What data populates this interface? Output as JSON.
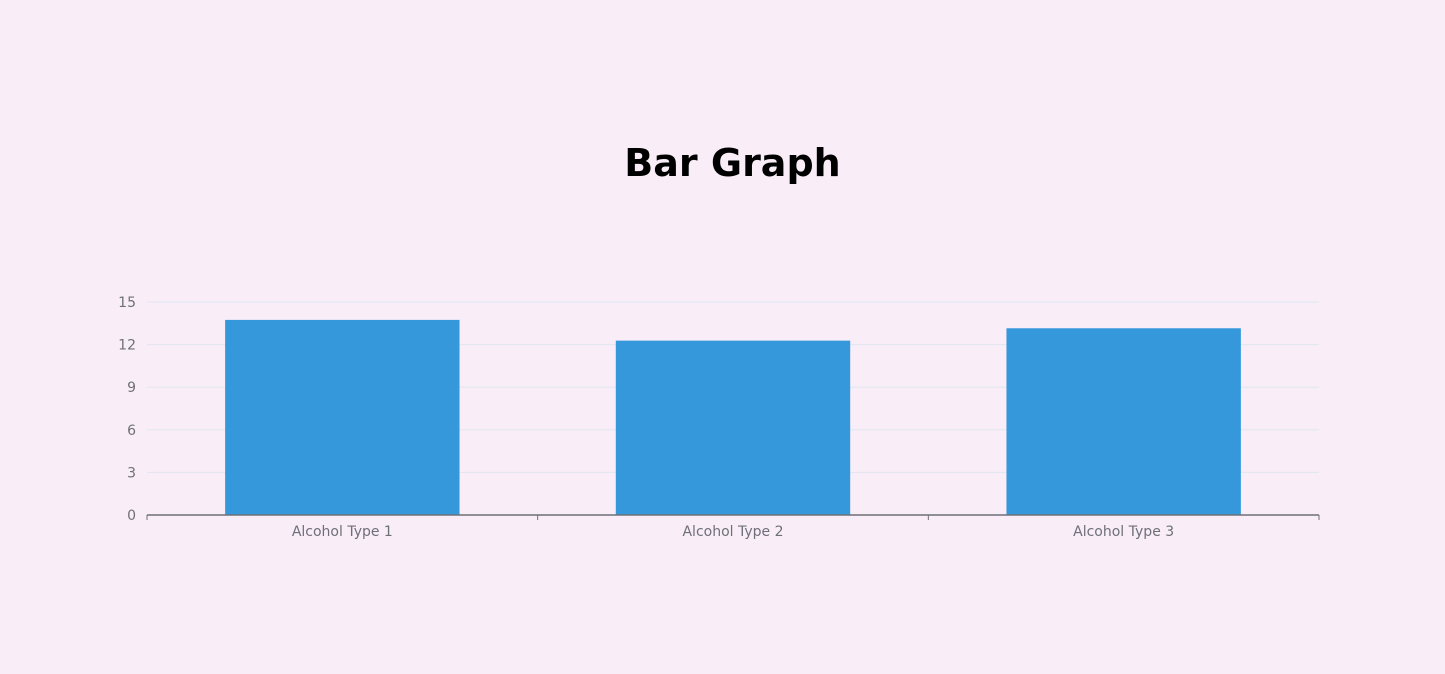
{
  "chart_data": {
    "type": "bar",
    "title": "Bar Graph",
    "categories": [
      "Alcohol Type 1",
      "Alcohol Type 2",
      "Alcohol Type 3"
    ],
    "values": [
      13.74,
      12.28,
      13.15
    ],
    "ylim": [
      0,
      15
    ],
    "yticks": [
      "0",
      "3",
      "6",
      "9",
      "12",
      "15"
    ],
    "xlabel": "",
    "ylabel": "",
    "grid": true,
    "colors": {
      "bar": "#3498db",
      "grid": "#e0e6f1",
      "axis": "#6e7079",
      "background": "#f9edf7"
    }
  }
}
